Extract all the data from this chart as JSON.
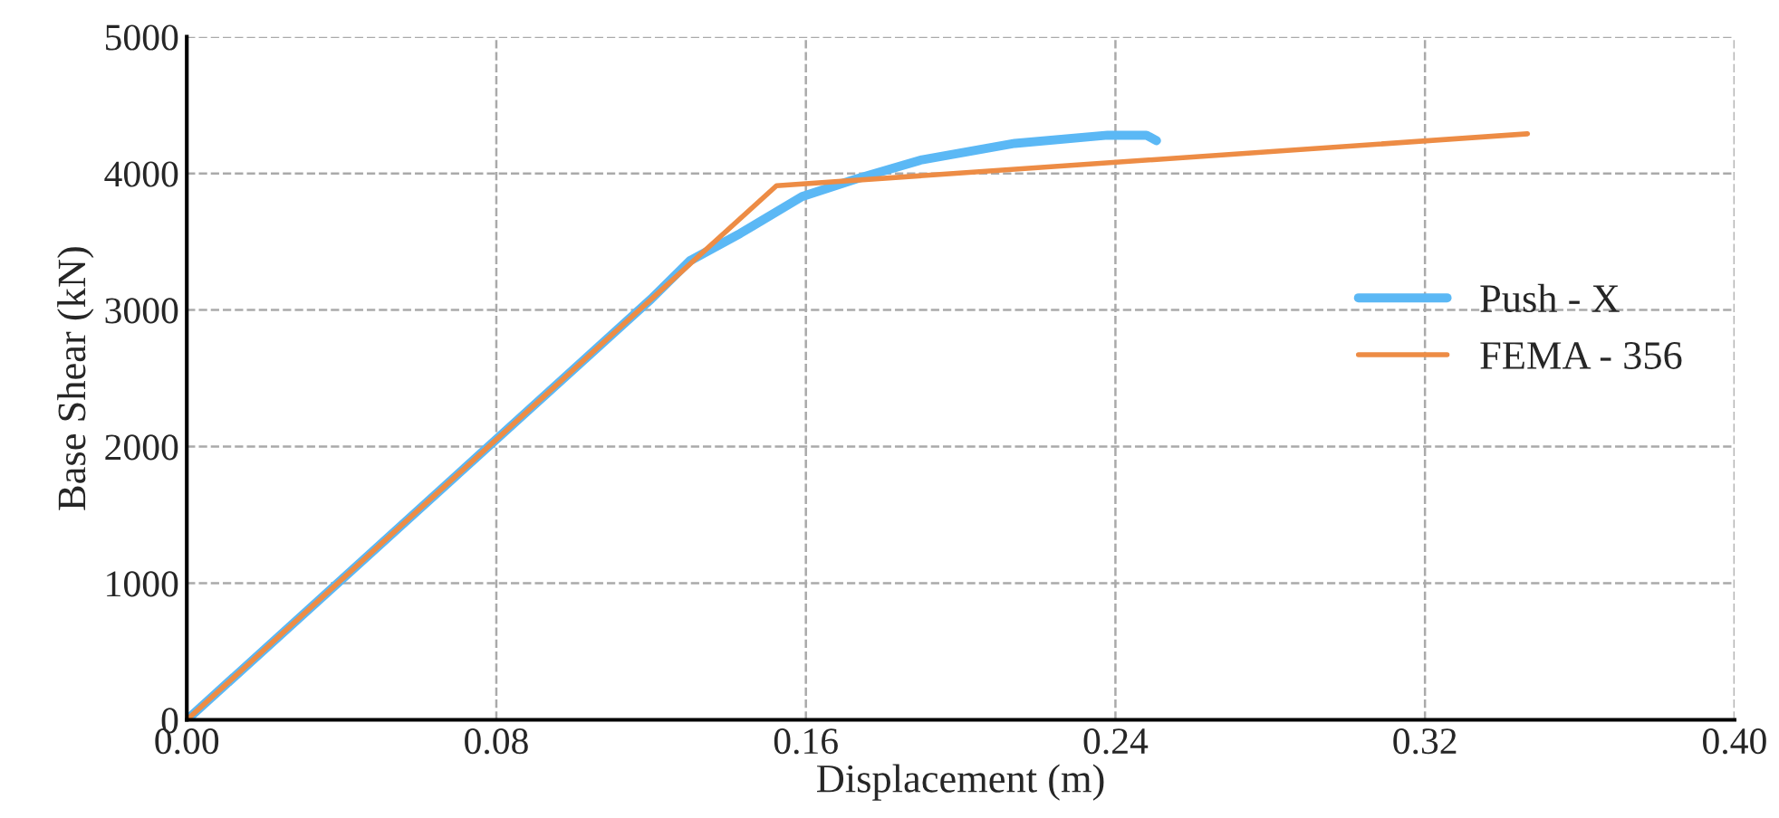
{
  "chart_data": {
    "type": "line",
    "xlabel": "Displacement (m)",
    "ylabel": "Base Shear (kN)",
    "xlim": [
      0,
      0.4
    ],
    "xticks": [
      {
        "value": 0,
        "label": "0.00"
      },
      {
        "value": 0.08,
        "label": "0.08"
      },
      {
        "value": 0.16,
        "label": "0.16"
      },
      {
        "value": 0.24,
        "label": "0.24"
      },
      {
        "value": 0.32,
        "label": "0.32"
      },
      {
        "value": 0.4,
        "label": "0.40"
      }
    ],
    "ylim": [
      0,
      5000
    ],
    "yticks": [
      0,
      1000,
      2000,
      3000,
      4000,
      5000
    ],
    "grid": true,
    "legend": "right",
    "line_style": "solid",
    "series": [
      {
        "name": "Push - X",
        "color": "#5bb8f5",
        "x": [
          0,
          0.12,
          0.13,
          0.143,
          0.159,
          0.173,
          0.19,
          0.214,
          0.238,
          0.248,
          0.2506
        ],
        "values": [
          0,
          3080,
          3360,
          3560,
          3830,
          3960,
          4100,
          4220,
          4280,
          4280,
          4240
        ]
      },
      {
        "name": "FEMA - 356",
        "color": "#ed8c45",
        "x": [
          0,
          0.1524,
          0.3465
        ],
        "values": [
          0,
          3910,
          4290
        ]
      }
    ]
  }
}
